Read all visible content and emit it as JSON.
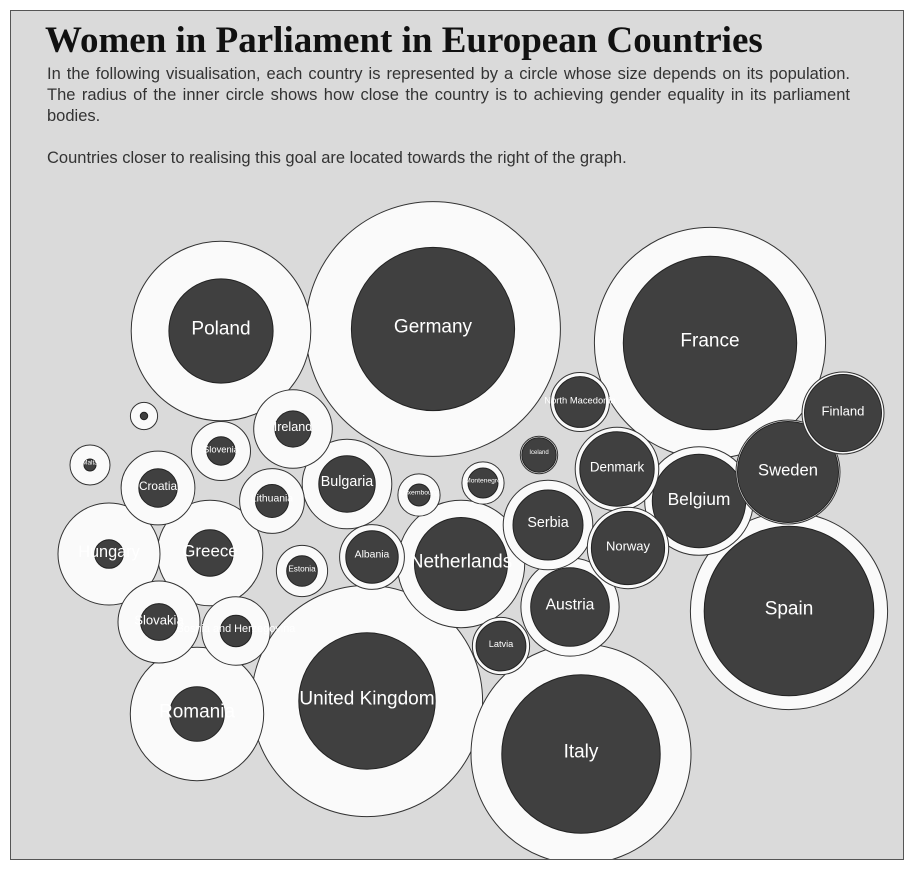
{
  "title": "Women in Parliament in European Countries",
  "description": "In the following visualisation, each country is represented by a circle whose size depends on its population. The radius of the inner circle shows how close the country is to achieving gender equality in its parliament bodies.",
  "note": "Countries closer to realising this goal are located towards the right of the graph.",
  "colors": {
    "background": "#dadada",
    "outer_fill": "#fafafa",
    "inner_fill": "#404040",
    "label": "#ffffff"
  },
  "chart_data": {
    "type": "bubble",
    "encoding": {
      "outer_size": "population",
      "inner_size": "closeness to gender equality in parliament",
      "horizontal_order": "closeness to gender equality"
    },
    "countries": [
      {
        "name": "Germany",
        "population": 83,
        "equality_ratio": 0.64
      },
      {
        "name": "France",
        "population": 67,
        "equality_ratio": 0.75
      },
      {
        "name": "United Kingdom",
        "population": 67,
        "equality_ratio": 0.59
      },
      {
        "name": "Italy",
        "population": 60,
        "equality_ratio": 0.72
      },
      {
        "name": "Spain",
        "population": 47,
        "equality_ratio": 0.86
      },
      {
        "name": "Poland",
        "population": 38,
        "equality_ratio": 0.58
      },
      {
        "name": "Romania",
        "population": 19,
        "equality_ratio": 0.41
      },
      {
        "name": "Netherlands",
        "population": 17,
        "equality_ratio": 0.73
      },
      {
        "name": "Belgium",
        "population": 11.5,
        "equality_ratio": 0.86
      },
      {
        "name": "Greece",
        "population": 10.7,
        "equality_ratio": 0.44
      },
      {
        "name": "Sweden",
        "population": 10.3,
        "equality_ratio": 0.97
      },
      {
        "name": "Hungary",
        "population": 9.8,
        "equality_ratio": 0.28
      },
      {
        "name": "Austria",
        "population": 8.9,
        "equality_ratio": 0.8
      },
      {
        "name": "Serbia",
        "population": 7,
        "equality_ratio": 0.78
      },
      {
        "name": "Bulgaria",
        "population": 7,
        "equality_ratio": 0.63
      },
      {
        "name": "Denmark",
        "population": 5.8,
        "equality_ratio": 0.89
      },
      {
        "name": "Finland",
        "population": 5.5,
        "equality_ratio": 0.94
      },
      {
        "name": "Slovakia",
        "population": 5.5,
        "equality_ratio": 0.45
      },
      {
        "name": "Norway",
        "population": 5.4,
        "equality_ratio": 0.9
      },
      {
        "name": "Ireland",
        "population": 4.9,
        "equality_ratio": 0.46
      },
      {
        "name": "Croatia",
        "population": 4.1,
        "equality_ratio": 0.52
      },
      {
        "name": "Bosnia and Herzegovina",
        "population": 3.3,
        "equality_ratio": 0.46
      },
      {
        "name": "Albania",
        "population": 2.8,
        "equality_ratio": 0.81
      },
      {
        "name": "Lithuania",
        "population": 2.8,
        "equality_ratio": 0.51
      },
      {
        "name": "Slovenia",
        "population": 2.1,
        "equality_ratio": 0.48
      },
      {
        "name": "North Macedonia",
        "population": 2.1,
        "equality_ratio": 0.86
      },
      {
        "name": "Latvia",
        "population": 1.9,
        "equality_ratio": 0.87
      },
      {
        "name": "Estonia",
        "population": 1.3,
        "equality_ratio": 0.6
      },
      {
        "name": "Luxembourg",
        "population": 0.63,
        "equality_ratio": 0.52
      },
      {
        "name": "Montenegro",
        "population": 0.62,
        "equality_ratio": 0.71
      },
      {
        "name": "Malta",
        "population": 0.5,
        "equality_ratio": 0.3
      },
      {
        "name": "Iceland",
        "population": 0.36,
        "equality_ratio": 0.92
      },
      {
        "name": "",
        "population": 0.04,
        "equality_ratio": 0.27
      }
    ]
  }
}
